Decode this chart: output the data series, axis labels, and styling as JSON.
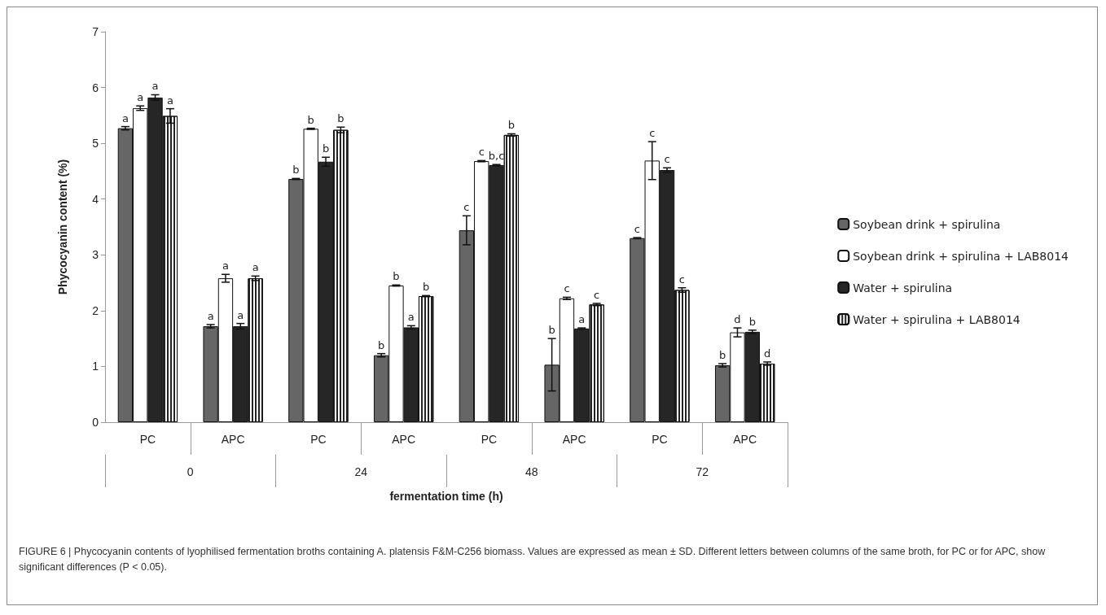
{
  "chart_data": {
    "type": "bar",
    "xlabel": "fermentation time (h)",
    "ylabel": "Phycocyanin content (%)",
    "categories": [
      "PC",
      "APC",
      "PC",
      "APC",
      "PC",
      "APC",
      "PC",
      "APC"
    ],
    "ylim": [
      0,
      7
    ],
    "yticks": [
      0,
      1,
      2,
      3,
      4,
      5,
      6,
      7
    ],
    "grid": false,
    "legend": "right",
    "series": [
      {
        "name": "Soybean drink + spirulina",
        "color": "#666666",
        "values": [
          5.27,
          1.72,
          4.36,
          1.2,
          3.44,
          1.03,
          3.3,
          1.02
        ],
        "errors": [
          0.03,
          0.03,
          0.01,
          0.03,
          0.26,
          0.47,
          0.01,
          0.03
        ],
        "value_labels": [
          "a",
          "a",
          "b",
          "b",
          "c",
          "b",
          "c",
          "b"
        ]
      },
      {
        "name": "Soybean drink + spirulina + LAB8014",
        "color": "#ffffff",
        "values": [
          5.63,
          2.58,
          5.26,
          2.45,
          4.68,
          2.22,
          4.69,
          1.61
        ],
        "errors": [
          0.04,
          0.07,
          0.01,
          0.01,
          0.01,
          0.02,
          0.34,
          0.08
        ],
        "value_labels": [
          "a",
          "a",
          "b",
          "b",
          "c",
          "c",
          "c",
          "d"
        ]
      },
      {
        "name": "Water + spirulina",
        "color": "#262626",
        "values": [
          5.82,
          1.72,
          4.67,
          1.7,
          4.61,
          1.68,
          4.52,
          1.62
        ],
        "errors": [
          0.05,
          0.05,
          0.08,
          0.03,
          0.01,
          0.01,
          0.04,
          0.03
        ],
        "value_labels": [
          "a",
          "a",
          "b",
          "a",
          "b,c",
          "a",
          "c",
          "b"
        ]
      },
      {
        "name": "Water + spirulina + LAB8014",
        "color": "#ffffff",
        "values": [
          5.49,
          2.58,
          5.24,
          2.26,
          5.15,
          2.11,
          2.37,
          1.05
        ],
        "errors": [
          0.13,
          0.04,
          0.05,
          0.01,
          0.02,
          0.02,
          0.04,
          0.03
        ],
        "value_labels": [
          "a",
          "a",
          "b",
          "b",
          "b",
          "c",
          "c",
          "d"
        ]
      }
    ],
    "annotations": [
      "0",
      "24",
      "48",
      "72",
      "FIGURE 6 | Phycocyanin contents of lyophilised fermentation broths containing A. platensis F&M-C256 biomass. Values are expressed as mean ± SD. Different letters between columns of the same broth, for PC or for APC, show significant differences (P < 0.05)."
    ]
  }
}
